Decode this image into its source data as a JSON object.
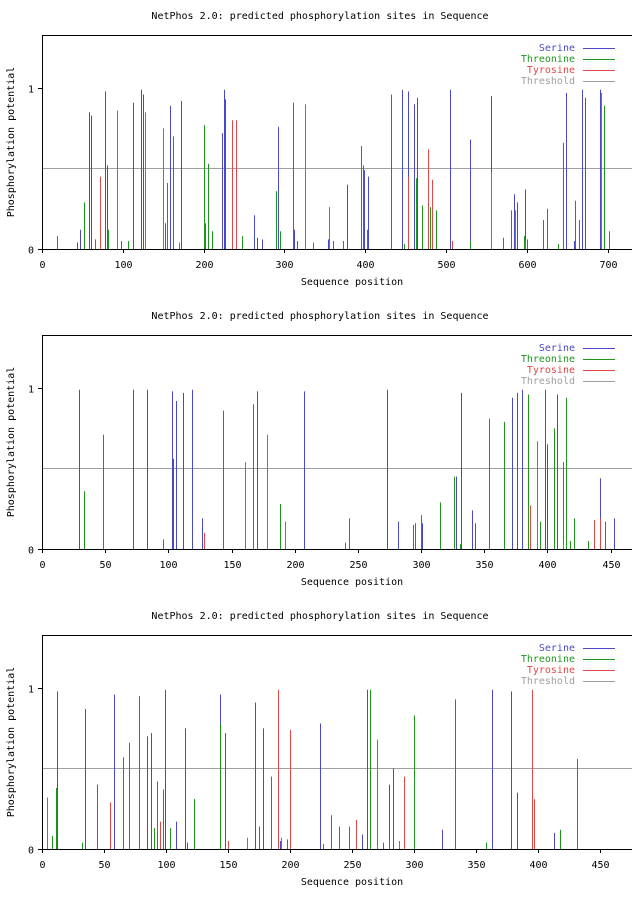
{
  "colors": {
    "serine": "#4848c8",
    "threonine": "#1e961e",
    "tyrosine": "#e04848",
    "threshold": "#a0a0a0",
    "axis": "#000000"
  },
  "chart_data": [
    {
      "type": "bar",
      "title": "NetPhos 2.0: predicted phosphorylation sites in Sequence",
      "xlabel": "Sequence position",
      "ylabel": "Phosphorylation potential",
      "xlim": [
        0,
        730
      ],
      "ylim": [
        0,
        1.33
      ],
      "xticks": [
        0,
        100,
        200,
        300,
        400,
        500,
        600,
        700
      ],
      "xtick_labels": [
        "0",
        "100",
        "200",
        "300",
        "400",
        "500",
        "600",
        "700"
      ],
      "yticks": [
        0,
        1
      ],
      "ytick_labels": [
        "0",
        "1"
      ],
      "threshold": 0.5,
      "legend": {
        "position": "top-right",
        "entries": [
          "Serine",
          "Threonine",
          "Tyrosine",
          "Threshold"
        ]
      },
      "series": [
        {
          "name": "Serine",
          "x": [
            43,
            47,
            58,
            61,
            78,
            80,
            112,
            122,
            125,
            152,
            158,
            172,
            223,
            225,
            227,
            262,
            266,
            272,
            292,
            312,
            354,
            377,
            398,
            403,
            445,
            453,
            460,
            464,
            505,
            530,
            556,
            584,
            588,
            598,
            648,
            658,
            668,
            672,
            690
          ],
          "values": [
            0.04,
            0.12,
            0.85,
            0.83,
            0.98,
            0.52,
            0.91,
            0.99,
            0.96,
            0.16,
            0.89,
            0.92,
            0.72,
            0.99,
            0.93,
            0.21,
            0.07,
            0.06,
            0.76,
            0.12,
            0.06,
            0.4,
            0.49,
            0.45,
            0.99,
            0.98,
            0.9,
            0.94,
            0.99,
            0.68,
            0.95,
            0.34,
            0.29,
            0.37,
            0.97,
            0.05,
            0.99,
            0.94,
            0.99
          ]
        },
        {
          "name": "Threonine",
          "x": [
            18,
            52,
            65,
            82,
            98,
            107,
            155,
            162,
            200,
            202,
            205,
            210,
            248,
            290,
            295,
            310,
            315,
            335,
            360,
            372,
            395,
            397,
            402,
            432,
            448,
            463,
            470,
            480,
            488,
            530,
            555,
            570,
            580,
            596,
            600,
            620,
            625,
            638,
            645,
            660,
            665,
            695,
            702
          ],
          "values": [
            0.08,
            0.29,
            0.06,
            0.12,
            0.05,
            0.05,
            0.41,
            0.7,
            0.77,
            0.16,
            0.53,
            0.11,
            0.08,
            0.36,
            0.11,
            0.91,
            0.05,
            0.04,
            0.05,
            0.05,
            0.64,
            0.52,
            0.12,
            0.96,
            0.03,
            0.44,
            0.27,
            0.26,
            0.24,
            0.05,
            0.04,
            0.07,
            0.24,
            0.08,
            0.06,
            0.18,
            0.25,
            0.03,
            0.66,
            0.3,
            0.18,
            0.89,
            0.11
          ]
        },
        {
          "name": "Tyrosine",
          "x": [
            72,
            93,
            128,
            150,
            169,
            235,
            240,
            325,
            355,
            453,
            478,
            482,
            507,
            555,
            585,
            597,
            692
          ],
          "values": [
            0.45,
            0.86,
            0.85,
            0.75,
            0.04,
            0.8,
            0.8,
            0.9,
            0.26,
            0.45,
            0.62,
            0.43,
            0.05,
            0.48,
            0.24,
            0.05,
            0.97
          ]
        }
      ]
    },
    {
      "type": "bar",
      "title": "NetPhos 2.0: predicted phosphorylation sites in Sequence",
      "xlabel": "Sequence position",
      "ylabel": "Phosphorylation potential",
      "xlim": [
        0,
        467
      ],
      "ylim": [
        0,
        1.33
      ],
      "xticks": [
        0,
        50,
        100,
        150,
        200,
        250,
        300,
        350,
        400,
        450
      ],
      "xtick_labels": [
        "0",
        "50",
        "100",
        "150",
        "200",
        "250",
        "300",
        "350",
        "400",
        "450"
      ],
      "yticks": [
        0,
        1
      ],
      "ytick_labels": [
        "0",
        "1"
      ],
      "threshold": 0.5,
      "legend": {
        "position": "top-right",
        "entries": [
          "Serine",
          "Threonine",
          "Tyrosine",
          "Threshold"
        ]
      },
      "series": [
        {
          "name": "Serine",
          "x": [
            29,
            72,
            83,
            103,
            104,
            106,
            112,
            119,
            127,
            170,
            207,
            273,
            282,
            301,
            328,
            332,
            340,
            343,
            372,
            376,
            380,
            398,
            400,
            408,
            418,
            442,
            453
          ],
          "values": [
            0.99,
            0.99,
            0.99,
            0.98,
            0.56,
            0.92,
            0.97,
            0.99,
            0.19,
            0.98,
            0.98,
            0.99,
            0.17,
            0.16,
            0.45,
            0.97,
            0.24,
            0.16,
            0.94,
            0.97,
            0.99,
            0.99,
            0.65,
            0.96,
            0.04,
            0.44,
            0.19
          ]
        },
        {
          "name": "Threonine",
          "x": [
            33,
            48,
            96,
            143,
            167,
            188,
            240,
            243,
            294,
            295,
            300,
            315,
            326,
            331,
            354,
            366,
            385,
            394,
            405,
            412,
            415,
            418,
            421,
            432,
            446
          ],
          "values": [
            0.36,
            0.71,
            0.06,
            0.86,
            0.9,
            0.28,
            0.04,
            0.19,
            0.15,
            0.16,
            0.21,
            0.29,
            0.45,
            0.03,
            0.81,
            0.79,
            0.96,
            0.17,
            0.75,
            0.54,
            0.94,
            0.05,
            0.19,
            0.05,
            0.17
          ]
        },
        {
          "name": "Tyrosine",
          "x": [
            128,
            161,
            178,
            192,
            386,
            392,
            412,
            437,
            442
          ],
          "values": [
            0.1,
            0.54,
            0.71,
            0.17,
            0.27,
            0.67,
            0.04,
            0.18,
            0.19
          ]
        }
      ]
    },
    {
      "type": "bar",
      "title": "NetPhos 2.0: predicted phosphorylation sites in Sequence",
      "xlabel": "Sequence position",
      "ylabel": "Phosphorylation potential",
      "xlim": [
        0,
        476
      ],
      "ylim": [
        0,
        1.33
      ],
      "xticks": [
        0,
        50,
        100,
        150,
        200,
        250,
        300,
        350,
        400,
        450
      ],
      "xtick_labels": [
        "0",
        "50",
        "100",
        "150",
        "200",
        "250",
        "300",
        "350",
        "400",
        "450"
      ],
      "yticks": [
        0,
        1
      ],
      "ytick_labels": [
        "0",
        "1"
      ],
      "threshold": 0.5,
      "legend": {
        "position": "top-right",
        "entries": [
          "Serine",
          "Threonine",
          "Tyrosine",
          "Threshold"
        ]
      },
      "series": [
        {
          "name": "Serine",
          "x": [
            12,
            35,
            58,
            85,
            88,
            99,
            108,
            115,
            117,
            144,
            148,
            172,
            178,
            192,
            224,
            258,
            262,
            280,
            283,
            323,
            363,
            378,
            383,
            413,
            418
          ],
          "values": [
            0.98,
            0.87,
            0.96,
            0.7,
            0.72,
            0.99,
            0.17,
            0.75,
            0.04,
            0.96,
            0.72,
            0.91,
            0.75,
            0.05,
            0.78,
            0.09,
            0.99,
            0.4,
            0.5,
            0.12,
            0.99,
            0.98,
            0.35,
            0.1,
            0.05
          ]
        },
        {
          "name": "Threonine",
          "x": [
            8,
            11,
            32,
            44,
            65,
            70,
            78,
            90,
            93,
            98,
            103,
            123,
            144,
            175,
            185,
            198,
            227,
            233,
            240,
            248,
            265,
            275,
            280,
            300,
            333,
            358,
            418,
            432
          ],
          "values": [
            0.08,
            0.38,
            0.04,
            0.4,
            0.57,
            0.66,
            0.95,
            0.13,
            0.42,
            0.37,
            0.13,
            0.31,
            0.78,
            0.14,
            0.45,
            0.06,
            0.03,
            0.21,
            0.14,
            0.14,
            0.99,
            0.04,
            0.05,
            0.83,
            0.93,
            0.04,
            0.12,
            0.56
          ]
        },
        {
          "name": "Tyrosine",
          "x": [
            4,
            55,
            95,
            150,
            165,
            190,
            193,
            200,
            253,
            270,
            288,
            292,
            395,
            397
          ],
          "values": [
            0.32,
            0.29,
            0.17,
            0.05,
            0.07,
            0.99,
            0.07,
            0.74,
            0.18,
            0.68,
            0.05,
            0.45,
            0.99,
            0.31
          ]
        }
      ]
    }
  ]
}
